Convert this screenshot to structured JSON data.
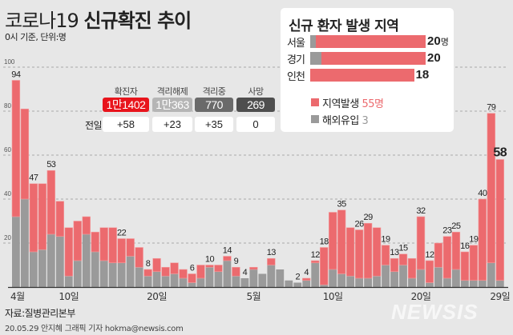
{
  "header": {
    "title_plain": "코로나19",
    "title_bold": "신규확진 추이",
    "subtitle": "0시 기준, 단위:명"
  },
  "stats": {
    "row_label": "전일대비",
    "items": [
      {
        "label": "확진자",
        "value": "1만1402",
        "diff": "+58",
        "color": "#e8141c"
      },
      {
        "label": "격리해제",
        "value": "1만363",
        "diff": "+23",
        "color": "#b5b5b5"
      },
      {
        "label": "격리중",
        "value": "770",
        "diff": "+35",
        "color": "#6a6a6a"
      },
      {
        "label": "사망",
        "value": "269",
        "diff": "0",
        "color": "#4e4e4e"
      }
    ]
  },
  "region_panel": {
    "title": "신규 환자 발생 지역",
    "unit": "명",
    "regions": [
      {
        "name": "서울",
        "total": 20,
        "imported": 1,
        "label": "20"
      },
      {
        "name": "경기",
        "total": 20,
        "imported": 2,
        "label": "20"
      },
      {
        "name": "인천",
        "total": 18,
        "imported": 0,
        "label": "18"
      }
    ],
    "legend": [
      {
        "name": "지역발생",
        "value": "55명",
        "color": "#ec6a6e"
      },
      {
        "name": "해외유입",
        "value": "3",
        "color": "#9a9a9a"
      }
    ]
  },
  "chart_data": {
    "type": "bar",
    "stacked": true,
    "title": "코로나19 신규확진 추이",
    "ylim": [
      0,
      100
    ],
    "yticks": [
      "100",
      "80",
      "60",
      "40",
      "20"
    ],
    "grid": true,
    "xtick_labels": [
      {
        "date": "4/4",
        "label": "4월"
      },
      {
        "date": "4/10",
        "label": "10일"
      },
      {
        "date": "4/20",
        "label": "20일"
      },
      {
        "date": "5/1",
        "label": "5월"
      },
      {
        "date": "5/10",
        "label": "10일"
      },
      {
        "date": "5/20",
        "label": "20일"
      },
      {
        "date": "5/29",
        "label": "29일"
      }
    ],
    "categories": [
      "4/4",
      "4/5",
      "4/6",
      "4/7",
      "4/8",
      "4/9",
      "4/10",
      "4/11",
      "4/12",
      "4/13",
      "4/14",
      "4/15",
      "4/16",
      "4/17",
      "4/18",
      "4/19",
      "4/20",
      "4/21",
      "4/22",
      "4/23",
      "4/24",
      "4/25",
      "4/26",
      "4/27",
      "4/28",
      "4/29",
      "4/30",
      "5/1",
      "5/2",
      "5/3",
      "5/4",
      "5/5",
      "5/6",
      "5/7",
      "5/8",
      "5/9",
      "5/10",
      "5/11",
      "5/12",
      "5/13",
      "5/14",
      "5/15",
      "5/16",
      "5/17",
      "5/18",
      "5/19",
      "5/20",
      "5/21",
      "5/22",
      "5/23",
      "5/24",
      "5/25",
      "5/26",
      "5/27",
      "5/28",
      "5/29"
    ],
    "totals": [
      94,
      81,
      47,
      47,
      53,
      39,
      27,
      30,
      32,
      25,
      27,
      27,
      22,
      22,
      18,
      8,
      13,
      9,
      11,
      8,
      6,
      10,
      10,
      10,
      14,
      9,
      4,
      9,
      6,
      13,
      8,
      3,
      2,
      4,
      12,
      18,
      34,
      35,
      27,
      26,
      29,
      27,
      19,
      13,
      15,
      13,
      32,
      12,
      20,
      23,
      25,
      16,
      19,
      40,
      79,
      58
    ],
    "series": [
      {
        "name": "해외유입",
        "color": "#9a9a9a",
        "values": [
          32,
          40,
          16,
          17,
          24,
          23,
          5,
          12,
          24,
          16,
          12,
          11,
          11,
          14,
          9,
          5,
          7,
          5,
          6,
          4,
          2,
          4,
          9,
          7,
          12,
          5,
          4,
          8,
          6,
          10,
          8,
          3,
          2,
          3,
          11,
          1,
          8,
          6,
          5,
          4,
          4,
          5,
          10,
          7,
          10,
          4,
          8,
          2,
          9,
          4,
          8,
          3,
          3,
          3,
          11,
          3
        ]
      },
      {
        "name": "지역발생",
        "color": "#ec6a6e",
        "values": [
          62,
          41,
          31,
          30,
          29,
          16,
          22,
          18,
          8,
          9,
          15,
          16,
          11,
          8,
          9,
          3,
          6,
          4,
          5,
          4,
          4,
          6,
          1,
          3,
          2,
          4,
          0,
          1,
          0,
          3,
          0,
          0,
          0,
          1,
          1,
          17,
          26,
          29,
          22,
          22,
          25,
          22,
          9,
          6,
          5,
          9,
          24,
          10,
          11,
          19,
          17,
          13,
          16,
          37,
          68,
          55
        ]
      }
    ],
    "data_labels": [
      "94",
      null,
      "47",
      null,
      "53",
      null,
      null,
      null,
      null,
      null,
      null,
      null,
      "22",
      null,
      null,
      "8",
      null,
      null,
      null,
      null,
      "6",
      null,
      "10",
      null,
      "14",
      "9",
      "4",
      null,
      null,
      "13",
      null,
      null,
      "2",
      "4",
      "12",
      "18",
      null,
      "35",
      null,
      "26",
      "29",
      null,
      "19",
      "13",
      "15",
      null,
      "32",
      "12",
      null,
      "23",
      "25",
      "16",
      "19",
      "40",
      "79",
      "58"
    ]
  },
  "footer": {
    "source": "자료:질병관리본부",
    "credit": "20.05.29 안지혜 그래픽 기자 hokma@newsis.com",
    "logo": "NEWSIS"
  }
}
